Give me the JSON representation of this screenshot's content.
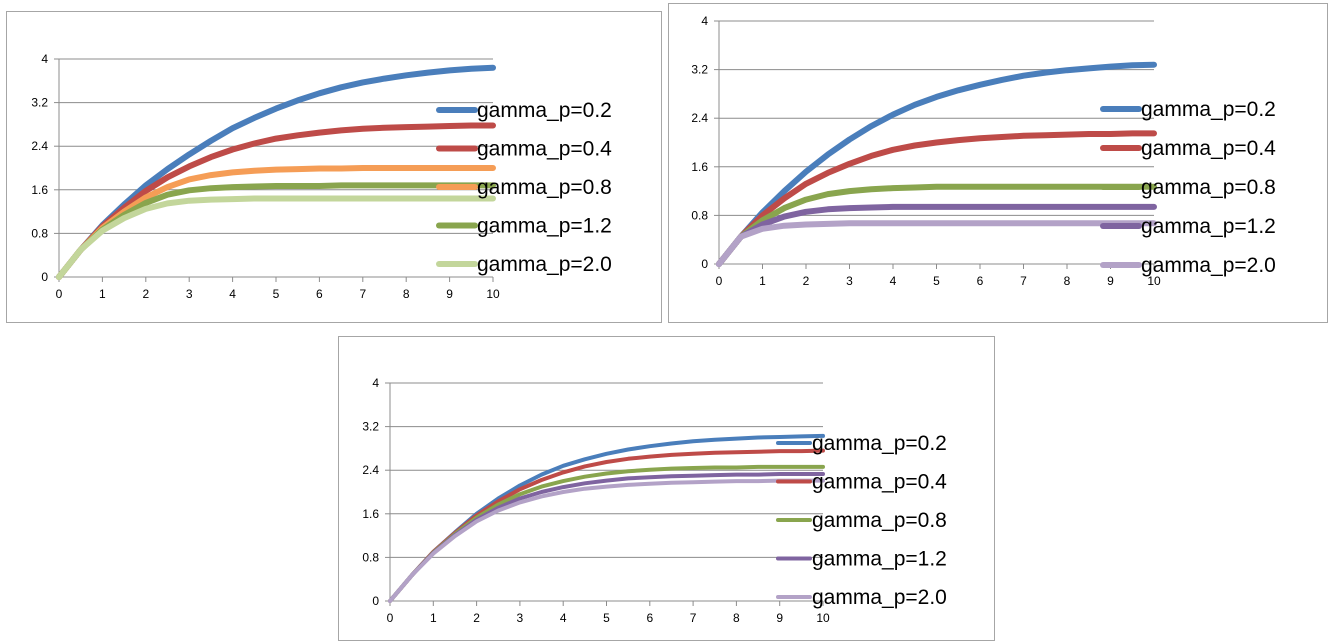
{
  "chart_data": [
    {
      "type": "line",
      "title": "",
      "xlabel": "",
      "ylabel": "",
      "xlim": [
        0,
        10
      ],
      "ylim": [
        0,
        4
      ],
      "x_ticks": [
        "0",
        "1",
        "2",
        "3",
        "4",
        "5",
        "6",
        "7",
        "8",
        "9",
        "10"
      ],
      "y_ticks": [
        "0",
        "0.8",
        "1.6",
        "2.4",
        "3.2",
        "4"
      ],
      "grid": "horizontal",
      "legend": "right",
      "series": [
        {
          "name": "gamma_p=0.2",
          "color": "#4a7ebb",
          "x": [
            0,
            0.5,
            1,
            1.5,
            2,
            2.5,
            3,
            3.5,
            4,
            4.5,
            5,
            5.5,
            6,
            6.5,
            7,
            7.5,
            8,
            8.5,
            9,
            9.5,
            10
          ],
          "y": [
            0,
            0.5,
            0.95,
            1.33,
            1.68,
            1.98,
            2.25,
            2.5,
            2.73,
            2.92,
            3.09,
            3.24,
            3.37,
            3.48,
            3.57,
            3.64,
            3.7,
            3.75,
            3.79,
            3.82,
            3.84
          ]
        },
        {
          "name": "gamma_p=0.4",
          "color": "#be4b48",
          "x": [
            0,
            0.5,
            1,
            1.5,
            2,
            2.5,
            3,
            3.5,
            4,
            4.5,
            5,
            5.5,
            6,
            6.5,
            7,
            7.5,
            8,
            8.5,
            9,
            9.5,
            10
          ],
          "y": [
            0,
            0.5,
            0.93,
            1.27,
            1.58,
            1.83,
            2.03,
            2.2,
            2.34,
            2.45,
            2.54,
            2.6,
            2.65,
            2.69,
            2.72,
            2.74,
            2.75,
            2.76,
            2.77,
            2.78,
            2.78
          ]
        },
        {
          "name": "gamma_p=0.8",
          "color": "#f59d56",
          "x": [
            0,
            0.5,
            1,
            1.5,
            2,
            2.5,
            3,
            3.5,
            4,
            4.5,
            5,
            5.5,
            6,
            6.5,
            7,
            7.5,
            8,
            8.5,
            9,
            9.5,
            10
          ],
          "y": [
            0,
            0.5,
            0.9,
            1.2,
            1.46,
            1.65,
            1.79,
            1.87,
            1.92,
            1.95,
            1.97,
            1.98,
            1.99,
            1.99,
            2.0,
            2.0,
            2.0,
            2.0,
            2.0,
            2.0,
            2.0
          ]
        },
        {
          "name": "gamma_p=1.2",
          "color": "#89a54e",
          "x": [
            0,
            0.5,
            1,
            1.5,
            2,
            2.5,
            3,
            3.5,
            4,
            4.5,
            5,
            5.5,
            6,
            6.5,
            7,
            7.5,
            8,
            8.5,
            9,
            9.5,
            10
          ],
          "y": [
            0,
            0.5,
            0.87,
            1.14,
            1.36,
            1.51,
            1.59,
            1.63,
            1.65,
            1.66,
            1.67,
            1.67,
            1.67,
            1.68,
            1.68,
            1.68,
            1.68,
            1.68,
            1.68,
            1.68,
            1.68
          ]
        },
        {
          "name": "gamma_p=2.0",
          "color": "#c3d69b",
          "x": [
            0,
            0.5,
            1,
            1.5,
            2,
            2.5,
            3,
            3.5,
            4,
            4.5,
            5,
            5.5,
            6,
            6.5,
            7,
            7.5,
            8,
            8.5,
            9,
            9.5,
            10
          ],
          "y": [
            0,
            0.5,
            0.85,
            1.08,
            1.25,
            1.35,
            1.4,
            1.42,
            1.43,
            1.44,
            1.44,
            1.44,
            1.44,
            1.44,
            1.44,
            1.44,
            1.44,
            1.44,
            1.44,
            1.44,
            1.44
          ]
        }
      ]
    },
    {
      "type": "line",
      "title": "",
      "xlabel": "",
      "ylabel": "",
      "xlim": [
        0,
        10
      ],
      "ylim": [
        0,
        4
      ],
      "x_ticks": [
        "0",
        "1",
        "2",
        "3",
        "4",
        "5",
        "6",
        "7",
        "8",
        "9",
        "10"
      ],
      "y_ticks": [
        "0",
        "0.8",
        "1.6",
        "2.4",
        "3.2",
        "4"
      ],
      "grid": "horizontal",
      "legend": "right",
      "series": [
        {
          "name": "gamma_p=0.2",
          "color": "#4a7ebb",
          "x": [
            0,
            0.5,
            1,
            1.5,
            2,
            2.5,
            3,
            3.5,
            4,
            4.5,
            5,
            5.5,
            6,
            6.5,
            7,
            7.5,
            8,
            8.5,
            9,
            9.5,
            10
          ],
          "y": [
            0,
            0.45,
            0.85,
            1.2,
            1.52,
            1.8,
            2.05,
            2.27,
            2.46,
            2.62,
            2.75,
            2.86,
            2.95,
            3.03,
            3.1,
            3.15,
            3.19,
            3.22,
            3.25,
            3.27,
            3.28
          ]
        },
        {
          "name": "gamma_p=0.4",
          "color": "#be4b48",
          "x": [
            0,
            0.5,
            1,
            1.5,
            2,
            2.5,
            3,
            3.5,
            4,
            4.5,
            5,
            5.5,
            6,
            6.5,
            7,
            7.5,
            8,
            8.5,
            9,
            9.5,
            10
          ],
          "y": [
            0,
            0.45,
            0.8,
            1.08,
            1.32,
            1.5,
            1.65,
            1.78,
            1.88,
            1.95,
            2.0,
            2.04,
            2.07,
            2.09,
            2.11,
            2.12,
            2.13,
            2.14,
            2.14,
            2.15,
            2.15
          ]
        },
        {
          "name": "gamma_p=0.8",
          "color": "#89a54e",
          "x": [
            0,
            0.5,
            1,
            1.5,
            2,
            2.5,
            3,
            3.5,
            4,
            4.5,
            5,
            5.5,
            6,
            6.5,
            7,
            7.5,
            8,
            8.5,
            9,
            9.5,
            10
          ],
          "y": [
            0,
            0.45,
            0.72,
            0.92,
            1.06,
            1.15,
            1.2,
            1.23,
            1.25,
            1.26,
            1.27,
            1.27,
            1.27,
            1.27,
            1.27,
            1.27,
            1.27,
            1.27,
            1.27,
            1.27,
            1.27
          ]
        },
        {
          "name": "gamma_p=1.2",
          "color": "#7f64a0",
          "x": [
            0,
            0.5,
            1,
            1.5,
            2,
            2.5,
            3,
            3.5,
            4,
            4.5,
            5,
            5.5,
            6,
            6.5,
            7,
            7.5,
            8,
            8.5,
            9,
            9.5,
            10
          ],
          "y": [
            0,
            0.45,
            0.65,
            0.78,
            0.86,
            0.9,
            0.92,
            0.93,
            0.94,
            0.94,
            0.94,
            0.94,
            0.94,
            0.94,
            0.94,
            0.94,
            0.94,
            0.94,
            0.94,
            0.94,
            0.94
          ]
        },
        {
          "name": "gamma_p=2.0",
          "color": "#b3a2c7",
          "x": [
            0,
            0.5,
            1,
            1.5,
            2,
            2.5,
            3,
            3.5,
            4,
            4.5,
            5,
            5.5,
            6,
            6.5,
            7,
            7.5,
            8,
            8.5,
            9,
            9.5,
            10
          ],
          "y": [
            0,
            0.45,
            0.58,
            0.63,
            0.65,
            0.66,
            0.67,
            0.67,
            0.67,
            0.67,
            0.67,
            0.67,
            0.67,
            0.67,
            0.67,
            0.67,
            0.67,
            0.67,
            0.67,
            0.67,
            0.67
          ]
        }
      ]
    },
    {
      "type": "line",
      "title": "",
      "xlabel": "",
      "ylabel": "",
      "xlim": [
        0,
        10
      ],
      "ylim": [
        0,
        4
      ],
      "x_ticks": [
        "0",
        "1",
        "2",
        "3",
        "4",
        "5",
        "6",
        "7",
        "8",
        "9",
        "10"
      ],
      "y_ticks": [
        "0",
        "0.8",
        "1.6",
        "2.4",
        "3.2",
        "4"
      ],
      "grid": "horizontal",
      "legend": "right",
      "series": [
        {
          "name": "gamma_p=0.2",
          "color": "#4a7ebb",
          "x": [
            0,
            0.5,
            1,
            1.5,
            2,
            2.5,
            3,
            3.5,
            4,
            4.5,
            5,
            5.5,
            6,
            6.5,
            7,
            7.5,
            8,
            8.5,
            9,
            9.5,
            10
          ],
          "y": [
            0,
            0.47,
            0.9,
            1.26,
            1.6,
            1.88,
            2.12,
            2.32,
            2.48,
            2.6,
            2.7,
            2.78,
            2.84,
            2.89,
            2.93,
            2.96,
            2.98,
            3.0,
            3.01,
            3.02,
            3.03
          ]
        },
        {
          "name": "gamma_p=0.4",
          "color": "#be4b48",
          "x": [
            0,
            0.5,
            1,
            1.5,
            2,
            2.5,
            3,
            3.5,
            4,
            4.5,
            5,
            5.5,
            6,
            6.5,
            7,
            7.5,
            8,
            8.5,
            9,
            9.5,
            10
          ],
          "y": [
            0,
            0.47,
            0.9,
            1.25,
            1.57,
            1.83,
            2.05,
            2.22,
            2.36,
            2.47,
            2.55,
            2.61,
            2.65,
            2.68,
            2.7,
            2.72,
            2.73,
            2.74,
            2.75,
            2.75,
            2.76
          ]
        },
        {
          "name": "gamma_p=0.8",
          "color": "#89a54e",
          "x": [
            0,
            0.5,
            1,
            1.5,
            2,
            2.5,
            3,
            3.5,
            4,
            4.5,
            5,
            5.5,
            6,
            6.5,
            7,
            7.5,
            8,
            8.5,
            9,
            9.5,
            10
          ],
          "y": [
            0,
            0.47,
            0.89,
            1.23,
            1.53,
            1.77,
            1.96,
            2.1,
            2.2,
            2.28,
            2.34,
            2.38,
            2.41,
            2.43,
            2.44,
            2.45,
            2.45,
            2.46,
            2.46,
            2.46,
            2.46
          ]
        },
        {
          "name": "gamma_p=1.2",
          "color": "#7f64a0",
          "x": [
            0,
            0.5,
            1,
            1.5,
            2,
            2.5,
            3,
            3.5,
            4,
            4.5,
            5,
            5.5,
            6,
            6.5,
            7,
            7.5,
            8,
            8.5,
            9,
            9.5,
            10
          ],
          "y": [
            0,
            0.47,
            0.88,
            1.21,
            1.49,
            1.71,
            1.88,
            2.0,
            2.09,
            2.16,
            2.21,
            2.25,
            2.27,
            2.29,
            2.3,
            2.31,
            2.32,
            2.32,
            2.33,
            2.33,
            2.33
          ]
        },
        {
          "name": "gamma_p=2.0",
          "color": "#b3a2c7",
          "x": [
            0,
            0.5,
            1,
            1.5,
            2,
            2.5,
            3,
            3.5,
            4,
            4.5,
            5,
            5.5,
            6,
            6.5,
            7,
            7.5,
            8,
            8.5,
            9,
            9.5,
            10
          ],
          "y": [
            0,
            0.47,
            0.87,
            1.19,
            1.46,
            1.66,
            1.81,
            1.92,
            2.0,
            2.06,
            2.1,
            2.13,
            2.15,
            2.17,
            2.18,
            2.19,
            2.2,
            2.2,
            2.21,
            2.21,
            2.21
          ]
        }
      ]
    }
  ]
}
